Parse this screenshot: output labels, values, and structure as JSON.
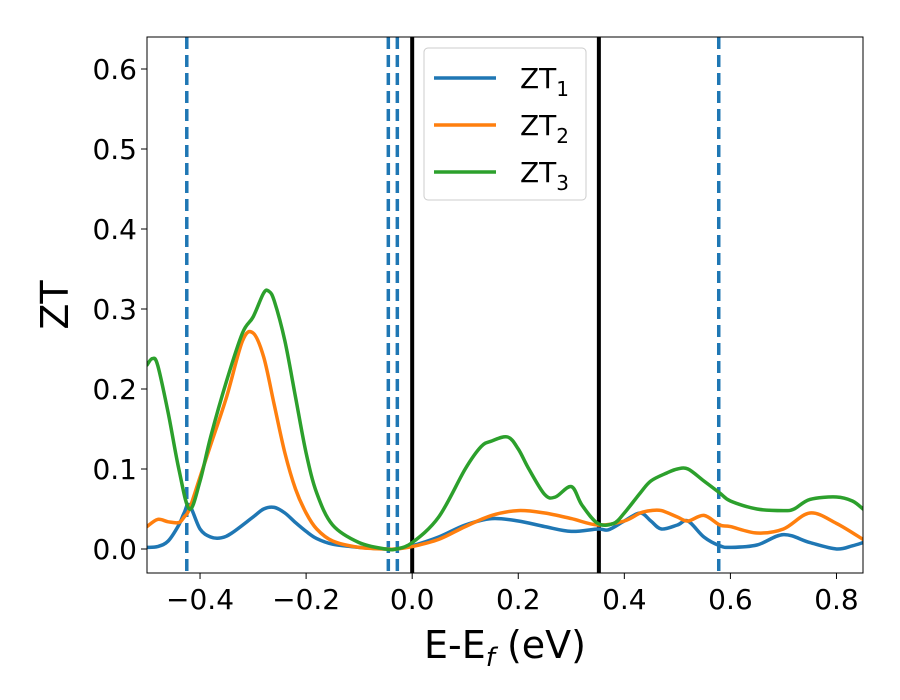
{
  "chart_data": {
    "type": "line",
    "title": "",
    "xlabel": "E-E",
    "xlabel_sub": "f",
    "xlabel_unit": " (eV)",
    "ylabel": "ZT",
    "xlim": [
      -0.5,
      0.85
    ],
    "ylim": [
      -0.03,
      0.64
    ],
    "x_ticks": [
      -0.4,
      -0.2,
      0.0,
      0.2,
      0.4,
      0.6,
      0.8
    ],
    "x_tick_labels": [
      "−0.4",
      "−0.2",
      "0.0",
      "0.2",
      "0.4",
      "0.6",
      "0.8"
    ],
    "y_ticks": [
      0.0,
      0.1,
      0.2,
      0.3,
      0.4,
      0.5,
      0.6
    ],
    "y_tick_labels": [
      "0.0",
      "0.1",
      "0.2",
      "0.3",
      "0.4",
      "0.5",
      "0.6"
    ],
    "grid": false,
    "legend_position": "top-center",
    "series": [
      {
        "name": "ZT",
        "sub": "1",
        "color": "#1f77b4",
        "x": [
          -0.5,
          -0.48,
          -0.46,
          -0.44,
          -0.43,
          -0.42,
          -0.4,
          -0.38,
          -0.36,
          -0.34,
          -0.3,
          -0.28,
          -0.26,
          -0.24,
          -0.22,
          -0.2,
          -0.18,
          -0.15,
          -0.1,
          -0.05,
          -0.03,
          0.0,
          0.05,
          0.1,
          0.15,
          0.2,
          0.25,
          0.3,
          0.35,
          0.37,
          0.4,
          0.43,
          0.45,
          0.47,
          0.5,
          0.52,
          0.55,
          0.58,
          0.6,
          0.65,
          0.7,
          0.75,
          0.8,
          0.83,
          0.85
        ],
        "y": [
          0.002,
          0.003,
          0.01,
          0.03,
          0.045,
          0.055,
          0.025,
          0.015,
          0.014,
          0.02,
          0.04,
          0.05,
          0.052,
          0.045,
          0.033,
          0.022,
          0.013,
          0.006,
          0.002,
          0.0,
          0.0,
          0.004,
          0.015,
          0.03,
          0.038,
          0.035,
          0.028,
          0.022,
          0.025,
          0.024,
          0.035,
          0.045,
          0.035,
          0.025,
          0.03,
          0.035,
          0.015,
          0.004,
          0.002,
          0.005,
          0.018,
          0.008,
          0.0,
          0.004,
          0.008
        ]
      },
      {
        "name": "ZT",
        "sub": "2",
        "color": "#ff7f0e",
        "x": [
          -0.5,
          -0.48,
          -0.46,
          -0.44,
          -0.43,
          -0.42,
          -0.4,
          -0.38,
          -0.35,
          -0.32,
          -0.3,
          -0.28,
          -0.26,
          -0.24,
          -0.22,
          -0.2,
          -0.18,
          -0.15,
          -0.1,
          -0.05,
          -0.03,
          0.0,
          0.05,
          0.1,
          0.15,
          0.2,
          0.25,
          0.3,
          0.35,
          0.4,
          0.43,
          0.45,
          0.47,
          0.5,
          0.52,
          0.55,
          0.58,
          0.6,
          0.65,
          0.7,
          0.75,
          0.8,
          0.85
        ],
        "y": [
          0.028,
          0.037,
          0.034,
          0.033,
          0.04,
          0.05,
          0.09,
          0.13,
          0.19,
          0.26,
          0.27,
          0.24,
          0.18,
          0.12,
          0.075,
          0.045,
          0.025,
          0.01,
          0.002,
          0.0,
          0.0,
          0.003,
          0.012,
          0.028,
          0.042,
          0.048,
          0.045,
          0.038,
          0.03,
          0.035,
          0.045,
          0.048,
          0.048,
          0.04,
          0.035,
          0.042,
          0.03,
          0.028,
          0.02,
          0.025,
          0.045,
          0.032,
          0.012
        ]
      },
      {
        "name": "ZT",
        "sub": "3",
        "color": "#2ca02c",
        "x": [
          -0.5,
          -0.49,
          -0.48,
          -0.46,
          -0.44,
          -0.42,
          -0.4,
          -0.38,
          -0.35,
          -0.32,
          -0.3,
          -0.28,
          -0.27,
          -0.26,
          -0.24,
          -0.22,
          -0.2,
          -0.18,
          -0.15,
          -0.1,
          -0.05,
          -0.03,
          0.0,
          0.05,
          0.1,
          0.13,
          0.15,
          0.18,
          0.2,
          0.22,
          0.25,
          0.27,
          0.3,
          0.32,
          0.35,
          0.38,
          0.4,
          0.43,
          0.45,
          0.48,
          0.5,
          0.52,
          0.55,
          0.58,
          0.6,
          0.65,
          0.7,
          0.72,
          0.75,
          0.8,
          0.83,
          0.85
        ],
        "y": [
          0.23,
          0.238,
          0.23,
          0.17,
          0.1,
          0.05,
          0.085,
          0.14,
          0.21,
          0.27,
          0.29,
          0.32,
          0.322,
          0.31,
          0.26,
          0.19,
          0.12,
          0.07,
          0.03,
          0.008,
          0.0,
          0.0,
          0.008,
          0.04,
          0.1,
          0.128,
          0.135,
          0.14,
          0.125,
          0.1,
          0.068,
          0.065,
          0.078,
          0.055,
          0.032,
          0.032,
          0.045,
          0.07,
          0.085,
          0.095,
          0.1,
          0.1,
          0.085,
          0.07,
          0.06,
          0.05,
          0.048,
          0.05,
          0.062,
          0.065,
          0.06,
          0.05
        ]
      }
    ],
    "vertical_lines": [
      {
        "x": -0.425,
        "style": "dashed",
        "color": "#1f77b4"
      },
      {
        "x": -0.045,
        "style": "dashed",
        "color": "#1f77b4"
      },
      {
        "x": -0.028,
        "style": "dashed",
        "color": "#1f77b4"
      },
      {
        "x": 0.0,
        "style": "solid",
        "color": "#000000"
      },
      {
        "x": 0.352,
        "style": "solid",
        "color": "#000000"
      },
      {
        "x": 0.578,
        "style": "dashed",
        "color": "#1f77b4"
      }
    ]
  }
}
